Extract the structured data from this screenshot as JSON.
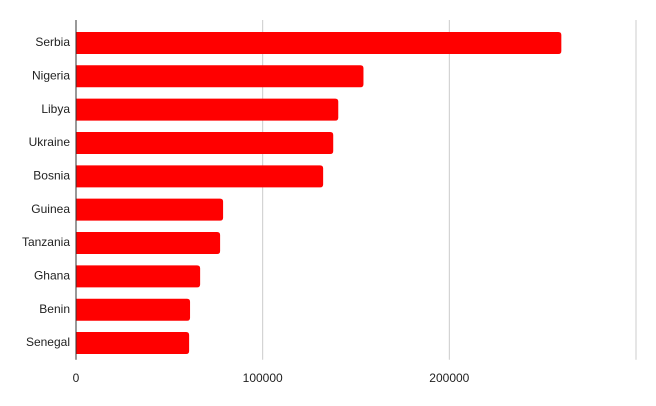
{
  "chart_data": {
    "type": "bar",
    "orientation": "horizontal",
    "categories": [
      "Serbia",
      "Nigeria",
      "Libya",
      "Ukraine",
      "Bosnia",
      "Guinea",
      "Tanzania",
      "Ghana",
      "Benin",
      "Senegal"
    ],
    "values": [
      260000,
      154000,
      140500,
      137800,
      132400,
      78800,
      77200,
      66500,
      61100,
      60600
    ],
    "color": "#ff0000",
    "xlim": [
      0,
      300000
    ],
    "xticks": [
      0,
      100000,
      200000
    ],
    "grid": true
  }
}
